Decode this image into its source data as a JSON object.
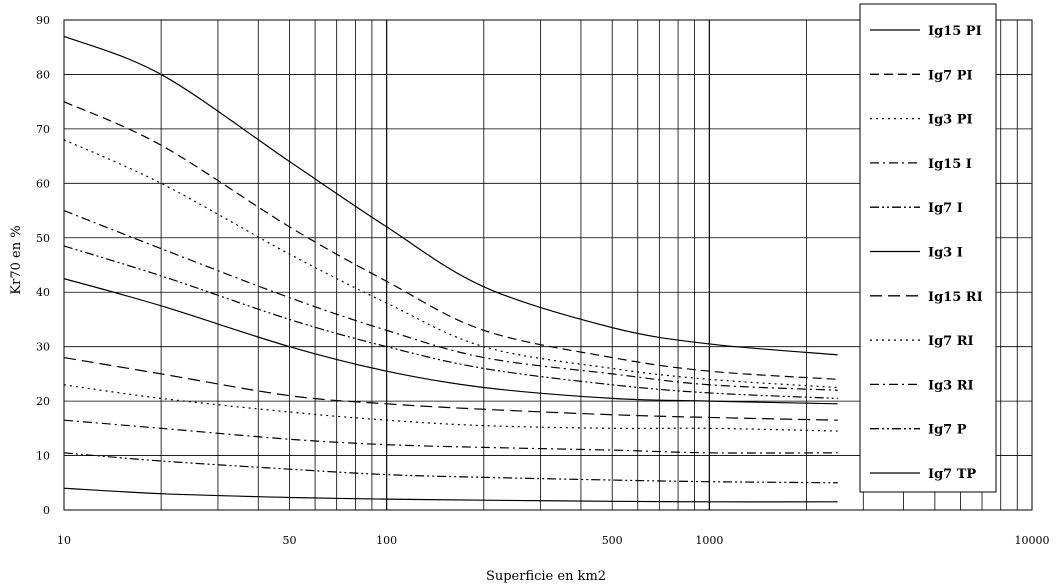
{
  "chart_data": {
    "type": "line",
    "title": "",
    "xlabel": "Superficie en km2",
    "ylabel": "Kr70 en %",
    "x_scale": "log",
    "xlim": [
      10,
      10000
    ],
    "ylim": [
      0,
      90
    ],
    "x_tick_labels": [
      {
        "value": 10,
        "label": "10"
      },
      {
        "value": 50,
        "label": "50"
      },
      {
        "value": 100,
        "label": "100"
      },
      {
        "value": 500,
        "label": "500"
      },
      {
        "value": 1000,
        "label": "1000"
      },
      {
        "value": 10000,
        "label": "10000"
      }
    ],
    "y_ticks": [
      0,
      10,
      20,
      30,
      40,
      50,
      60,
      70,
      80,
      90
    ],
    "grid": true,
    "legend_position": "top-right",
    "series": [
      {
        "name": "Ig15 PI",
        "dash": "solid",
        "x": [
          10,
          20,
          50,
          100,
          200,
          500,
          1000,
          2500
        ],
        "y": [
          87,
          80,
          64,
          52,
          41,
          33.5,
          30.5,
          28.5
        ]
      },
      {
        "name": "Ig7 PI",
        "dash": "dashed",
        "x": [
          10,
          20,
          50,
          100,
          200,
          500,
          1000,
          2500
        ],
        "y": [
          75,
          67,
          52,
          42,
          33,
          28,
          25.5,
          24
        ]
      },
      {
        "name": "Ig3 PI",
        "dash": "dotted",
        "x": [
          10,
          20,
          50,
          100,
          200,
          500,
          1000,
          2500
        ],
        "y": [
          68,
          60,
          47,
          38,
          30,
          26,
          24,
          22.5
        ]
      },
      {
        "name": "Ig15 I",
        "dash": "dashdot",
        "x": [
          10,
          20,
          50,
          100,
          200,
          500,
          1000,
          2500
        ],
        "y": [
          55,
          48,
          39,
          33,
          28,
          25,
          23,
          22
        ]
      },
      {
        "name": "Ig7 I",
        "dash": "dashdotdot",
        "x": [
          10,
          20,
          50,
          100,
          200,
          500,
          1000,
          2500
        ],
        "y": [
          48.5,
          43,
          35,
          30,
          26,
          23,
          21.5,
          20.5
        ]
      },
      {
        "name": "Ig3 I",
        "dash": "solid",
        "x": [
          10,
          20,
          50,
          100,
          200,
          500,
          1000,
          2500
        ],
        "y": [
          42.5,
          37.5,
          30,
          25.5,
          22.5,
          20.5,
          20,
          19.5
        ]
      },
      {
        "name": "Ig15 RI",
        "dash": "longdash",
        "x": [
          10,
          20,
          50,
          100,
          200,
          500,
          1000,
          2500
        ],
        "y": [
          28,
          25,
          21,
          19.5,
          18.5,
          17.5,
          17,
          16.5
        ]
      },
      {
        "name": "Ig7 RI",
        "dash": "dotted",
        "x": [
          10,
          20,
          50,
          100,
          200,
          500,
          1000,
          2500
        ],
        "y": [
          23,
          20.5,
          18,
          16.5,
          15.5,
          15,
          15,
          14.5
        ]
      },
      {
        "name": "Ig3 RI",
        "dash": "dashdot",
        "x": [
          10,
          20,
          50,
          100,
          200,
          500,
          1000,
          2500
        ],
        "y": [
          16.5,
          15,
          13,
          12,
          11.5,
          11,
          10.5,
          10.5
        ]
      },
      {
        "name": "Ig7 P",
        "dash": "dashdotdot",
        "x": [
          10,
          20,
          50,
          100,
          200,
          500,
          1000,
          2500
        ],
        "y": [
          10.5,
          9,
          7.5,
          6.5,
          6,
          5.5,
          5.2,
          5
        ]
      },
      {
        "name": "Ig7 TP",
        "dash": "solid",
        "x": [
          10,
          20,
          50,
          100,
          200,
          500,
          1000,
          2500
        ],
        "y": [
          4,
          3,
          2.3,
          2,
          1.8,
          1.6,
          1.5,
          1.5
        ]
      }
    ]
  }
}
